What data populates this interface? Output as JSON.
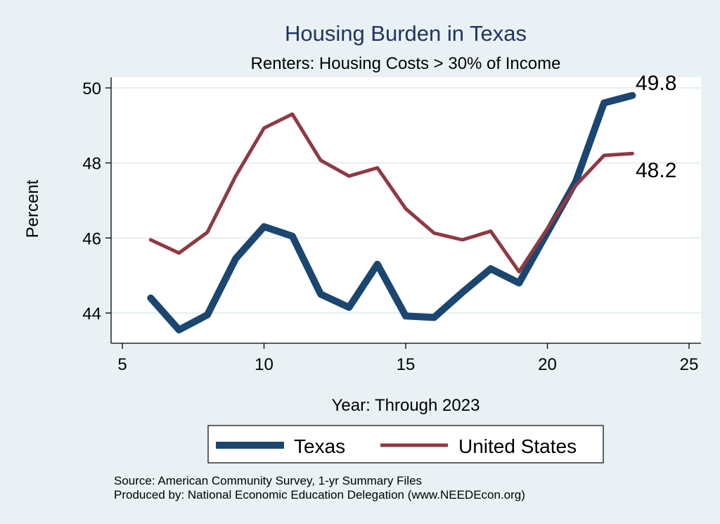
{
  "chart_data": {
    "type": "line",
    "title": "Housing Burden in Texas",
    "subtitle": "Renters: Housing Costs > 30% of Income",
    "xlabel": "Year: Through 2023",
    "ylabel": "Percent",
    "xlim": [
      5,
      25
    ],
    "ylim": [
      43.3,
      50.1
    ],
    "xticks": [
      5,
      10,
      15,
      20,
      25
    ],
    "yticks": [
      44,
      46,
      48,
      50
    ],
    "grid": true,
    "x": [
      6,
      7,
      8,
      9,
      10,
      11,
      12,
      13,
      14,
      15,
      16,
      17,
      18,
      19,
      20,
      21,
      22,
      23
    ],
    "series": [
      {
        "name": "Texas",
        "color": "#1a4670",
        "values": [
          44.4,
          43.55,
          43.95,
          45.45,
          46.3,
          46.05,
          44.5,
          44.15,
          45.3,
          43.92,
          43.88,
          44.55,
          45.18,
          44.8,
          46.15,
          47.5,
          49.6,
          49.8
        ],
        "end_label": "49.8"
      },
      {
        "name": "United States",
        "color": "#8f3a42",
        "values": [
          45.95,
          45.6,
          46.15,
          47.65,
          48.93,
          49.3,
          48.07,
          47.65,
          47.87,
          46.78,
          46.13,
          45.95,
          46.18,
          45.1,
          46.25,
          47.4,
          48.2,
          48.25
        ],
        "end_label": "48.2"
      }
    ],
    "legend": {
      "placement": "bottom",
      "entries": [
        "Texas",
        "United States"
      ]
    },
    "notes": [
      "Source: American Community Survey, 1-yr Summary Files",
      "Produced by: National Economic Education Delegation (www.NEEDEcon.org)"
    ]
  }
}
